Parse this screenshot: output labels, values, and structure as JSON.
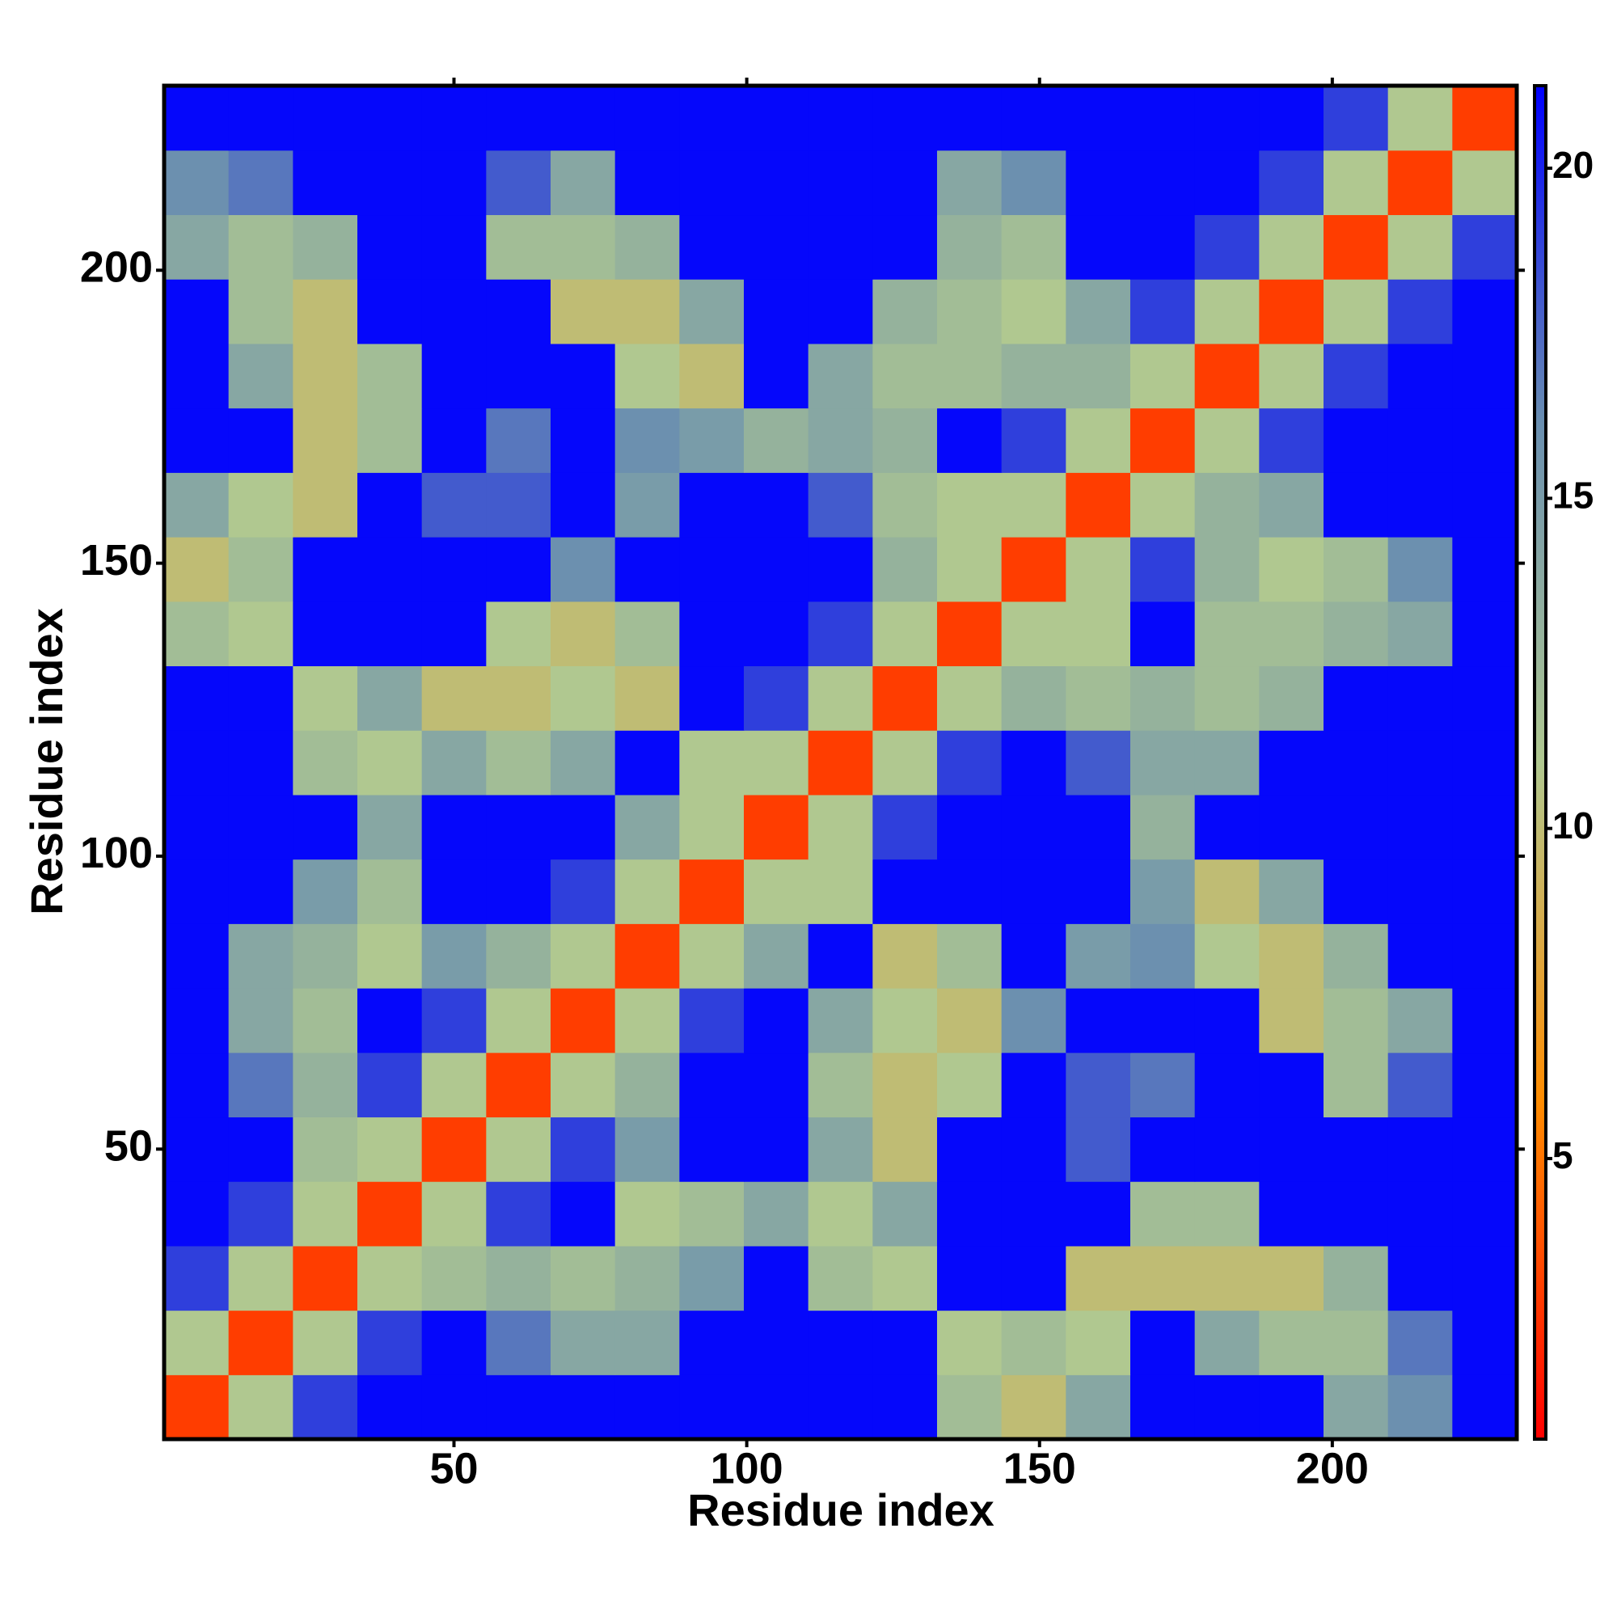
{
  "chart_data": {
    "type": "heatmap",
    "x_label": "Residue index",
    "y_label": "Residue index",
    "x": [
      6,
      17,
      28,
      39,
      50,
      61,
      72,
      83,
      94,
      105,
      116,
      127,
      138,
      149,
      160,
      171,
      182,
      193,
      204,
      215,
      226
    ],
    "y": [
      6,
      17,
      28,
      39,
      50,
      61,
      72,
      83,
      94,
      105,
      116,
      127,
      138,
      149,
      160,
      171,
      182,
      193,
      204,
      215,
      226
    ],
    "xlim": [
      0.5,
      231.5
    ],
    "ylim": [
      0.5,
      231.5
    ],
    "xticks": [
      50,
      100,
      150,
      200
    ],
    "yticks": [
      50,
      100,
      150,
      200
    ],
    "clim": [
      0.75,
      21.25
    ],
    "cticks": [
      5,
      10,
      15,
      20
    ],
    "colormap": [
      "#ff0000",
      "#ff8c00",
      "#b0c890",
      "#6a8fb0",
      "#0000ff"
    ],
    "z": [
      [
        3,
        11,
        19,
        21,
        21,
        21,
        21,
        21,
        21,
        21,
        21,
        21,
        12,
        10,
        14,
        21,
        21,
        21,
        14,
        16,
        21
      ],
      [
        11,
        3,
        11,
        19,
        21,
        17,
        14,
        14,
        21,
        21,
        21,
        21,
        11,
        12,
        11,
        21,
        14,
        12,
        12,
        17,
        21
      ],
      [
        19,
        11,
        3,
        11,
        12,
        13,
        12,
        13,
        15,
        21,
        12,
        11,
        21,
        21,
        10,
        10,
        10,
        10,
        13,
        21,
        21
      ],
      [
        21,
        19,
        11,
        3,
        11,
        19,
        21,
        11,
        12,
        14,
        11,
        14,
        21,
        21,
        21,
        12,
        12,
        21,
        21,
        21,
        21
      ],
      [
        21,
        21,
        12,
        11,
        3,
        11,
        19,
        15,
        21,
        21,
        14,
        10,
        21,
        21,
        18,
        21,
        21,
        21,
        21,
        21,
        21
      ],
      [
        21,
        17,
        13,
        19,
        11,
        3,
        11,
        13,
        21,
        21,
        12,
        10,
        11,
        21,
        18,
        17,
        21,
        21,
        12,
        18,
        21
      ],
      [
        21,
        14,
        12,
        21,
        19,
        11,
        3,
        11,
        19,
        21,
        14,
        11,
        10,
        16,
        21,
        21,
        21,
        10,
        12,
        14,
        21
      ],
      [
        21,
        14,
        13,
        11,
        15,
        13,
        11,
        3,
        11,
        14,
        21,
        10,
        12,
        21,
        15,
        16,
        11,
        10,
        13,
        21,
        21
      ],
      [
        21,
        21,
        15,
        12,
        21,
        21,
        19,
        11,
        3,
        11,
        11,
        21,
        21,
        21,
        21,
        15,
        10,
        14,
        21,
        21,
        21
      ],
      [
        21,
        21,
        21,
        14,
        21,
        21,
        21,
        14,
        11,
        3,
        11,
        19,
        21,
        21,
        21,
        13,
        21,
        21,
        21,
        21,
        21
      ],
      [
        21,
        21,
        12,
        11,
        14,
        12,
        14,
        21,
        11,
        11,
        3,
        11,
        19,
        21,
        18,
        14,
        14,
        21,
        21,
        21,
        21
      ],
      [
        21,
        21,
        11,
        14,
        10,
        10,
        11,
        10,
        21,
        19,
        11,
        3,
        11,
        13,
        12,
        13,
        12,
        13,
        21,
        21,
        21
      ],
      [
        12,
        11,
        21,
        21,
        21,
        11,
        10,
        12,
        21,
        21,
        19,
        11,
        3,
        11,
        11,
        21,
        12,
        12,
        13,
        14,
        21
      ],
      [
        10,
        12,
        21,
        21,
        21,
        21,
        16,
        21,
        21,
        21,
        21,
        13,
        11,
        3,
        11,
        19,
        13,
        11,
        12,
        16,
        21
      ],
      [
        14,
        11,
        10,
        21,
        18,
        18,
        21,
        15,
        21,
        21,
        18,
        12,
        11,
        11,
        3,
        11,
        13,
        14,
        21,
        21,
        21
      ],
      [
        21,
        21,
        10,
        12,
        21,
        17,
        21,
        16,
        15,
        13,
        14,
        13,
        21,
        19,
        11,
        3,
        11,
        19,
        21,
        21,
        21
      ],
      [
        21,
        14,
        10,
        12,
        21,
        21,
        21,
        11,
        10,
        21,
        14,
        12,
        12,
        13,
        13,
        11,
        3,
        11,
        19,
        21,
        21
      ],
      [
        21,
        12,
        10,
        21,
        21,
        21,
        10,
        10,
        14,
        21,
        21,
        13,
        12,
        11,
        14,
        19,
        11,
        3,
        11,
        19,
        21
      ],
      [
        14,
        12,
        13,
        21,
        21,
        12,
        12,
        13,
        21,
        21,
        21,
        21,
        13,
        12,
        21,
        21,
        19,
        11,
        3,
        11,
        19
      ],
      [
        16,
        17,
        21,
        21,
        21,
        18,
        14,
        21,
        21,
        21,
        21,
        21,
        14,
        16,
        21,
        21,
        21,
        19,
        11,
        3,
        11
      ],
      [
        21,
        21,
        21,
        21,
        21,
        21,
        21,
        21,
        21,
        21,
        21,
        21,
        21,
        21,
        21,
        21,
        21,
        21,
        19,
        11,
        3
      ]
    ]
  }
}
